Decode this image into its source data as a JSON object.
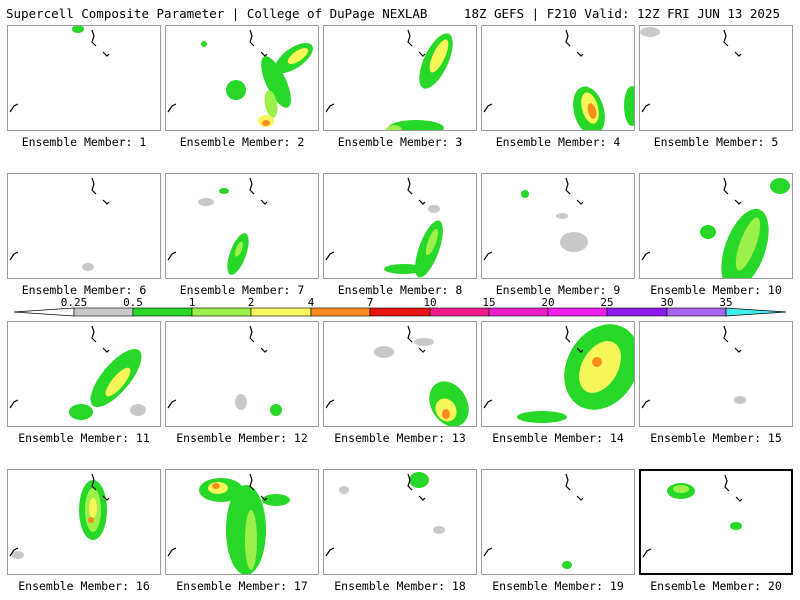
{
  "header": {
    "title_left": "Supercell Composite Parameter | College of DuPage NEXLAB",
    "title_right": "18Z GEFS | F210 Valid: 12Z FRI JUN 13 2025"
  },
  "legend": {
    "ticks": [
      "0.25",
      "0.5",
      "1",
      "2",
      "4",
      "7",
      "10",
      "15",
      "20",
      "25",
      "30",
      "35"
    ],
    "colors": [
      "#c8c8c8",
      "#28d828",
      "#9cf04c",
      "#f6f65a",
      "#f98c1c",
      "#e81414",
      "#ee1c8c",
      "#ee1cc8",
      "#ee1cee",
      "#8c1cee",
      "#a864ee",
      "#3cf0f0"
    ]
  },
  "panels": [
    {
      "label": "Ensemble Member: 1",
      "selected": false
    },
    {
      "label": "Ensemble Member: 2",
      "selected": false
    },
    {
      "label": "Ensemble Member: 3",
      "selected": false
    },
    {
      "label": "Ensemble Member: 4",
      "selected": false
    },
    {
      "label": "Ensemble Member: 5",
      "selected": false
    },
    {
      "label": "Ensemble Member: 6",
      "selected": false
    },
    {
      "label": "Ensemble Member: 7",
      "selected": false
    },
    {
      "label": "Ensemble Member: 8",
      "selected": false
    },
    {
      "label": "Ensemble Member: 9",
      "selected": false
    },
    {
      "label": "Ensemble Member: 10",
      "selected": false
    },
    {
      "label": "Ensemble Member: 11",
      "selected": false
    },
    {
      "label": "Ensemble Member: 12",
      "selected": false
    },
    {
      "label": "Ensemble Member: 13",
      "selected": false
    },
    {
      "label": "Ensemble Member: 14",
      "selected": false
    },
    {
      "label": "Ensemble Member: 15",
      "selected": false
    },
    {
      "label": "Ensemble Member: 16",
      "selected": false
    },
    {
      "label": "Ensemble Member: 17",
      "selected": false
    },
    {
      "label": "Ensemble Member: 18",
      "selected": false
    },
    {
      "label": "Ensemble Member: 19",
      "selected": false
    },
    {
      "label": "Ensemble Member: 20",
      "selected": true
    }
  ]
}
